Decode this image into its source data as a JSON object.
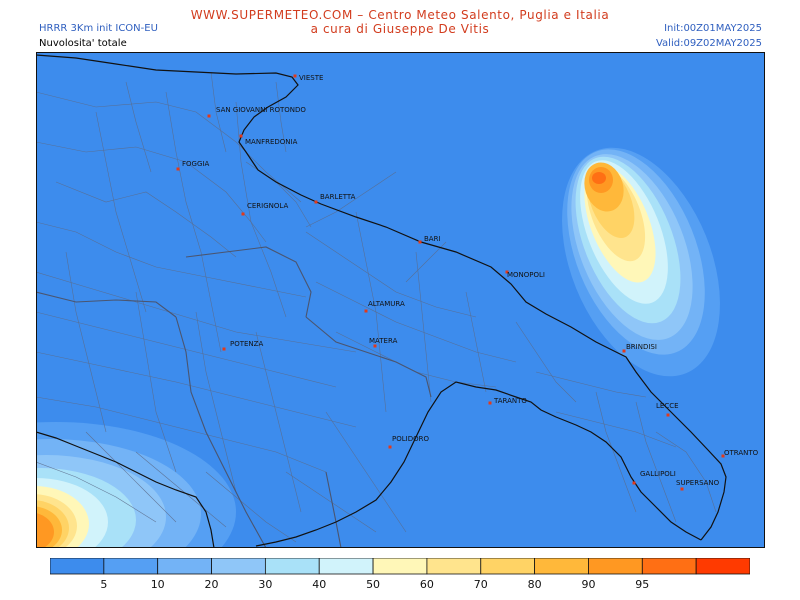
{
  "header": {
    "site_title": "WWW.SUPERMETEO.COM – Centro Meteo Salento, Puglia e Italia",
    "subtitle": "a cura di Giuseppe De Vitis",
    "model": "HRRR 3Km init ICON-EU",
    "field": "Nuvolosita' totale",
    "init": "Init:00Z01MAY2025",
    "valid": "Valid:09Z02MAY2025"
  },
  "colors": {
    "sea": "#3d8ced",
    "land": "#3d8ced",
    "borders": "#5b6b8a",
    "coast": "#111111",
    "city_marker": "#e23a1a"
  },
  "cities": [
    {
      "name": "VIESTE"
    },
    {
      "name": "SAN GIOVANNI ROTONDO"
    },
    {
      "name": "MANFREDONIA"
    },
    {
      "name": "FOGGIA"
    },
    {
      "name": "BARLETTA"
    },
    {
      "name": "CERIGNOLA"
    },
    {
      "name": "BARI"
    },
    {
      "name": "MONOPOLI"
    },
    {
      "name": "ALTAMURA"
    },
    {
      "name": "MATERA"
    },
    {
      "name": "POTENZA"
    },
    {
      "name": "BRINDISI"
    },
    {
      "name": "TARANTO"
    },
    {
      "name": "LECCE"
    },
    {
      "name": "POLIDORO"
    },
    {
      "name": "OTRANTO"
    },
    {
      "name": "GALLIPOLI"
    },
    {
      "name": "SUPERSANO"
    }
  ],
  "legend": {
    "colors": [
      "#3d8ced",
      "#559ff3",
      "#73b3f6",
      "#8fc6f8",
      "#a9e1f8",
      "#d1f3fb",
      "#fff7b8",
      "#ffe48d",
      "#ffd365",
      "#ffb83a",
      "#ff9822",
      "#ff6f14",
      "#ff3a00"
    ],
    "ticks": [
      "5",
      "10",
      "20",
      "30",
      "40",
      "50",
      "60",
      "70",
      "80",
      "90",
      "95"
    ]
  }
}
